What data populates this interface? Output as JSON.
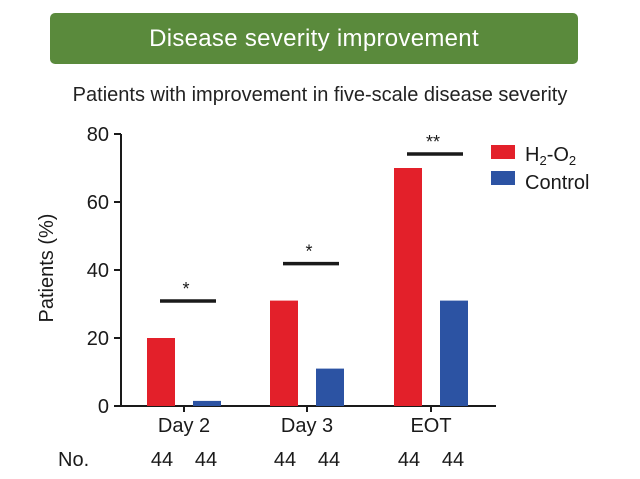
{
  "banner": {
    "title": "Disease severity improvement"
  },
  "chart_data": {
    "type": "bar",
    "title": "Patients with improvement in five-scale disease severity",
    "xlabel": "",
    "ylabel": "Patients (%)",
    "ylim": [
      0,
      80
    ],
    "yticks": [
      0,
      20,
      40,
      60,
      80
    ],
    "categories": [
      "Day 2",
      "Day 3",
      "EOT"
    ],
    "series": [
      {
        "name": "H2-O2",
        "legend_main": "H",
        "legend_sub1": "2",
        "legend_mid": "-O",
        "legend_sub2": "2",
        "color": "#e3202a",
        "values": [
          20,
          31,
          70
        ]
      },
      {
        "name": "Control",
        "color": "#2c53a3",
        "values": [
          1.5,
          11,
          31
        ]
      }
    ],
    "significance": [
      "*",
      "*",
      "**"
    ],
    "counts_label": "No.",
    "counts": [
      [
        "44",
        "44"
      ],
      [
        "44",
        "44"
      ],
      [
        "44",
        "44"
      ]
    ]
  }
}
